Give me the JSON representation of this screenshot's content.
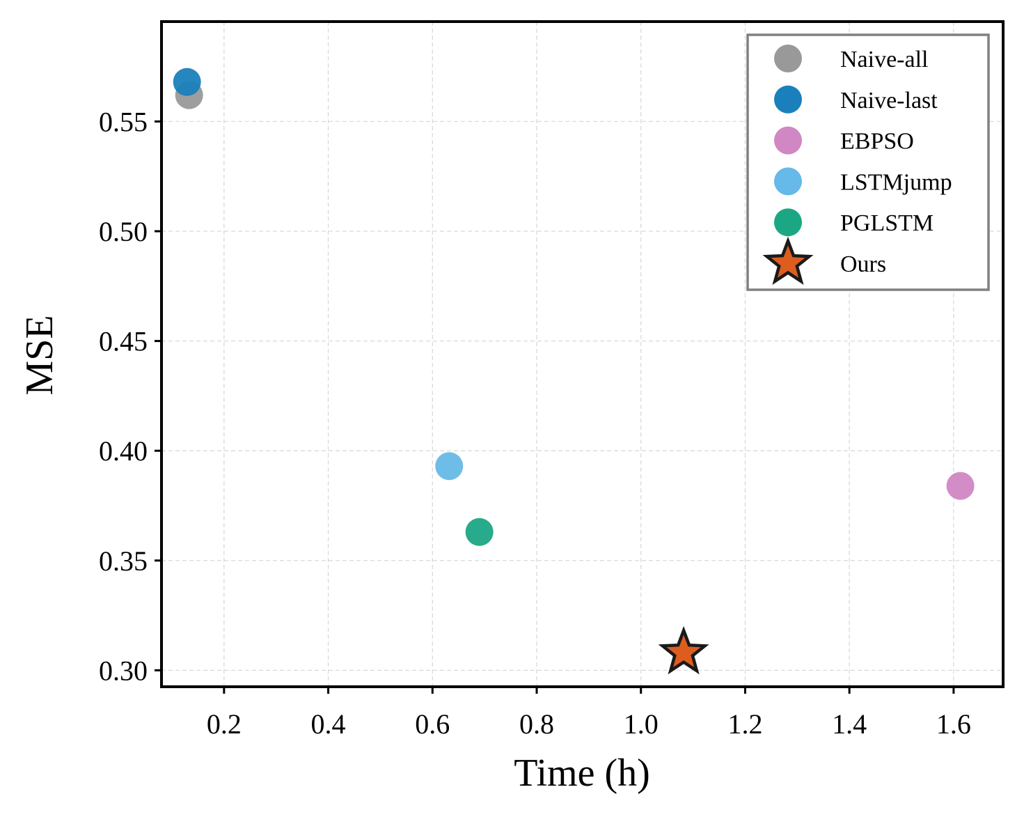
{
  "chart_data": {
    "type": "scatter",
    "title": "",
    "xlabel": "Time (h)",
    "ylabel": "MSE",
    "xlim": [
      0.08,
      1.695
    ],
    "ylim": [
      0.2925,
      0.5955
    ],
    "x_ticks": [
      0.2,
      0.4,
      0.6,
      0.8,
      1.0,
      1.2,
      1.4,
      1.6
    ],
    "x_tick_labels": [
      "0.2",
      "0.4",
      "0.6",
      "0.8",
      "1.0",
      "1.2",
      "1.4",
      "1.6"
    ],
    "y_ticks": [
      0.3,
      0.35,
      0.4,
      0.45,
      0.5,
      0.55
    ],
    "y_tick_labels": [
      "0.30",
      "0.35",
      "0.40",
      "0.45",
      "0.50",
      "0.55"
    ],
    "grid": true,
    "legend_position": "top-right",
    "series": [
      {
        "name": "Naive-all",
        "marker": "circle",
        "color": "#999999",
        "x": [
          0.133
        ],
        "y": [
          0.562
        ]
      },
      {
        "name": "Naive-last",
        "marker": "circle",
        "color": "#1a80bb",
        "x": [
          0.129
        ],
        "y": [
          0.568
        ]
      },
      {
        "name": "EBPSO",
        "marker": "circle",
        "color": "#d087c4",
        "x": [
          1.613
        ],
        "y": [
          0.384
        ]
      },
      {
        "name": "LSTMjump",
        "marker": "circle",
        "color": "#66b9e8",
        "x": [
          0.632
        ],
        "y": [
          0.393
        ]
      },
      {
        "name": "PGLSTM",
        "marker": "circle",
        "color": "#1ba784",
        "x": [
          0.69
        ],
        "y": [
          0.363
        ]
      },
      {
        "name": "Ours",
        "marker": "star",
        "color": "#dd5d1f",
        "x": [
          1.082
        ],
        "y": [
          0.308
        ]
      }
    ]
  }
}
